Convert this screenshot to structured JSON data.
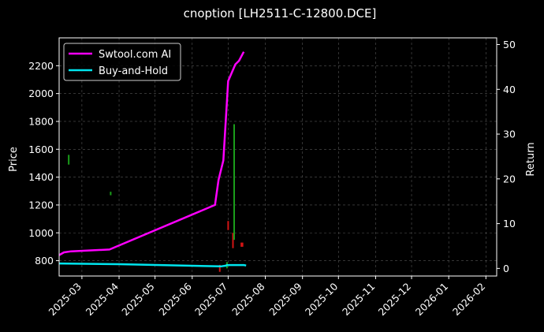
{
  "chart_data": {
    "type": "line",
    "title": "cnoption [LH2511-C-12800.DCE]",
    "xlabel": "",
    "ylabel": "Price",
    "y2label": "Return",
    "grid": true,
    "legend_position": "top-left",
    "x_ticks": [
      "2025-03",
      "2025-04",
      "2025-05",
      "2025-06",
      "2025-07",
      "2025-08",
      "2025-09",
      "2025-10",
      "2025-11",
      "2025-12",
      "2026-01",
      "2026-02"
    ],
    "xlim": [
      "2025-02-10",
      "2026-02-10"
    ],
    "ylim": [
      690,
      2400
    ],
    "y_ticks": [
      800,
      1000,
      1200,
      1400,
      1600,
      1800,
      2000,
      2200
    ],
    "y2lim": [
      -1.7,
      51.5
    ],
    "y2_ticks": [
      0,
      10,
      20,
      30,
      40,
      50
    ],
    "series": [
      {
        "name": "Swtool.com AI",
        "color": "#ff00ff",
        "axis": "price",
        "points": [
          [
            "2025-02-10",
            840
          ],
          [
            "2025-02-14",
            860
          ],
          [
            "2025-02-20",
            867
          ],
          [
            "2025-03-24",
            880
          ],
          [
            "2025-06-20",
            1200
          ],
          [
            "2025-06-23",
            1380
          ],
          [
            "2025-06-27",
            1520
          ],
          [
            "2025-07-01",
            2090
          ],
          [
            "2025-07-07",
            2210
          ],
          [
            "2025-07-10",
            2235
          ],
          [
            "2025-07-14",
            2300
          ]
        ]
      },
      {
        "name": "Buy-and-Hold",
        "color": "#00e5ee",
        "axis": "return",
        "points": [
          [
            "2025-02-10",
            1.1
          ],
          [
            "2025-04-01",
            0.95
          ],
          [
            "2025-06-25",
            0.45
          ],
          [
            "2025-06-29",
            0.6
          ],
          [
            "2025-06-30",
            0.75
          ],
          [
            "2025-07-14",
            0.75
          ],
          [
            "2025-07-16",
            0.65
          ]
        ]
      }
    ],
    "marks": [
      {
        "date": "2025-02-18",
        "low": 1490,
        "high": 1560,
        "color": "#1a9e1a"
      },
      {
        "date": "2025-03-25",
        "low": 1270,
        "high": 1295,
        "color": "#1a9e1a"
      },
      {
        "date": "2025-06-24",
        "low": 720,
        "high": 770,
        "color": "#d21414"
      },
      {
        "date": "2025-06-30",
        "low": 745,
        "high": 790,
        "color": "#1a9e1a"
      },
      {
        "date": "2025-07-01",
        "low": 1020,
        "high": 1085,
        "color": "#d21414"
      },
      {
        "date": "2025-07-05",
        "low": 890,
        "high": 1000,
        "color": "#d21414"
      },
      {
        "date": "2025-07-06",
        "low": 950,
        "high": 1780,
        "color": "#1a9e1a"
      },
      {
        "date": "2025-07-12",
        "low": 900,
        "high": 930,
        "color": "#d21414"
      },
      {
        "date": "2025-07-13",
        "low": 900,
        "high": 930,
        "color": "#d21414"
      }
    ]
  }
}
